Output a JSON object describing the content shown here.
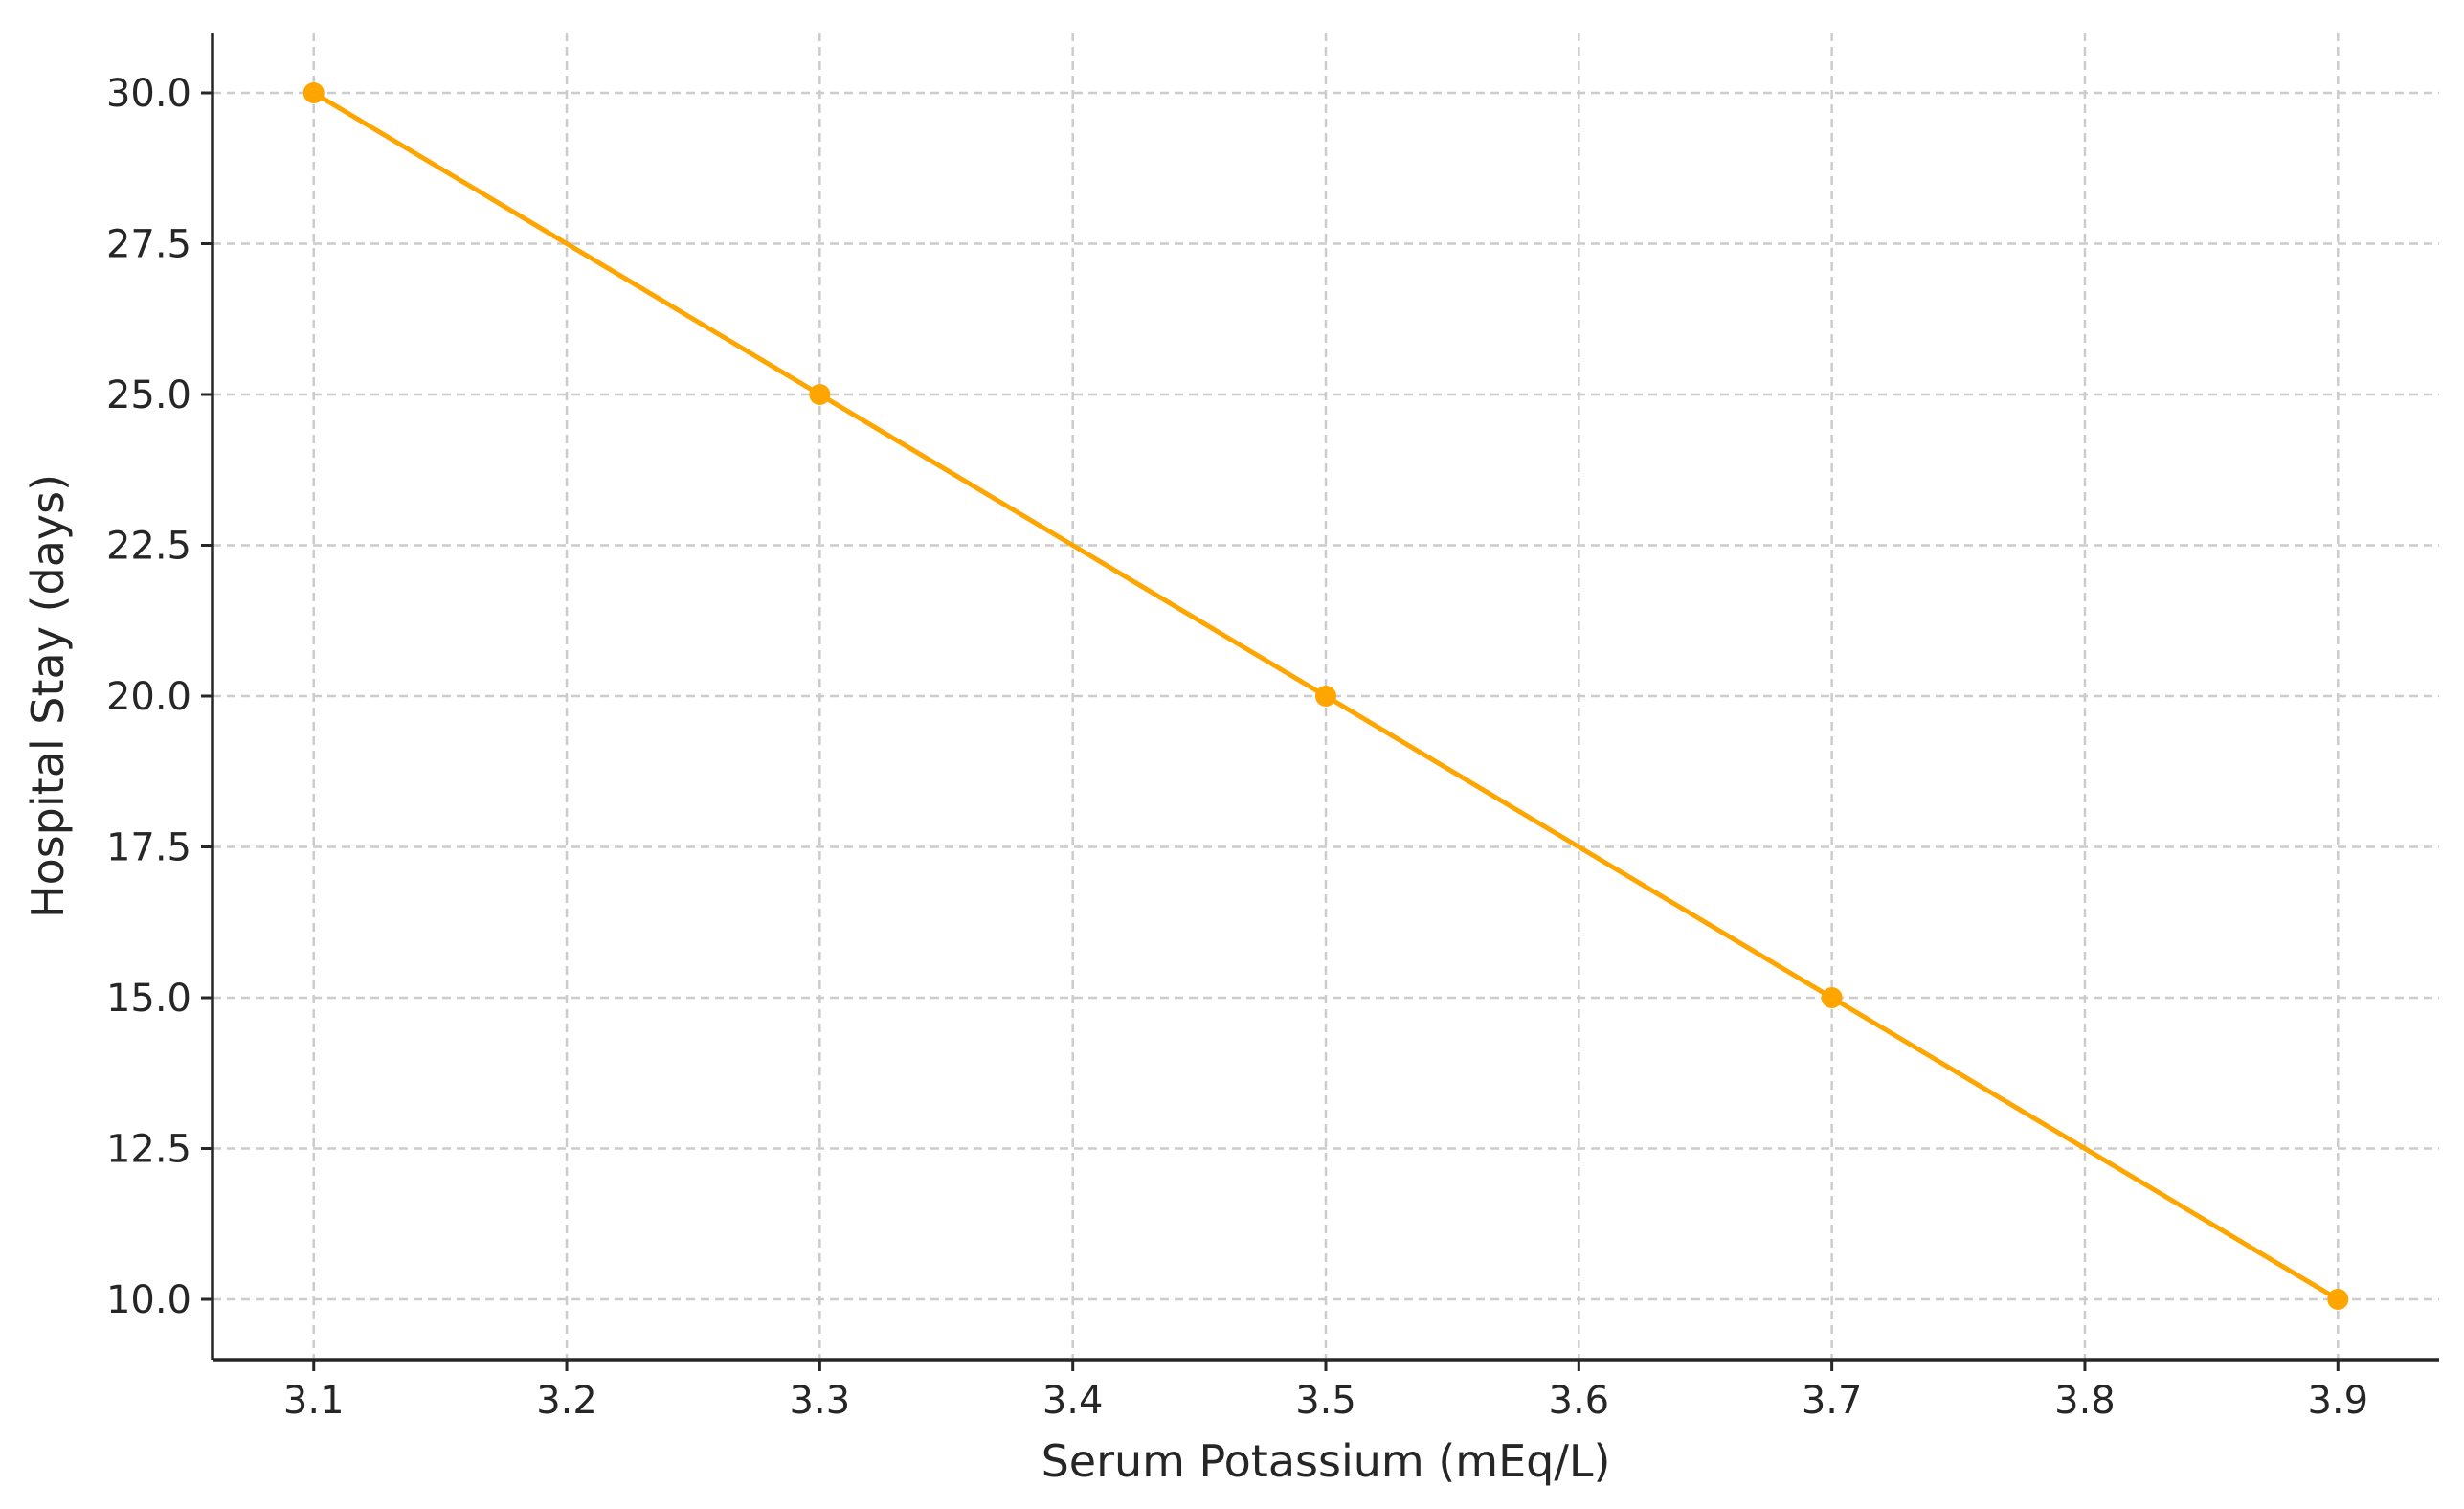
{
  "chart_data": {
    "type": "line",
    "title": "",
    "xlabel": "Serum Potassium (mEq/L)",
    "ylabel": "Hospital Stay (days)",
    "xlim": [
      3.06,
      3.94
    ],
    "ylim": [
      9.0,
      31.0
    ],
    "x_ticks": [
      3.1,
      3.2,
      3.3,
      3.4,
      3.5,
      3.6,
      3.7,
      3.8,
      3.9
    ],
    "x_tick_labels": [
      "3.1",
      "3.2",
      "3.3",
      "3.4",
      "3.5",
      "3.6",
      "3.7",
      "3.8",
      "3.9"
    ],
    "y_ticks": [
      10.0,
      12.5,
      15.0,
      17.5,
      20.0,
      22.5,
      25.0,
      27.5,
      30.0
    ],
    "y_tick_labels": [
      "10.0",
      "12.5",
      "15.0",
      "17.5",
      "20.0",
      "22.5",
      "25.0",
      "27.5",
      "30.0"
    ],
    "grid": true,
    "legend": "none",
    "series": [
      {
        "color": "#FFA500",
        "marker": "circle",
        "x": [
          3.1,
          3.3,
          3.5,
          3.7,
          3.9
        ],
        "y": [
          30,
          25,
          20,
          15,
          10
        ]
      }
    ]
  }
}
